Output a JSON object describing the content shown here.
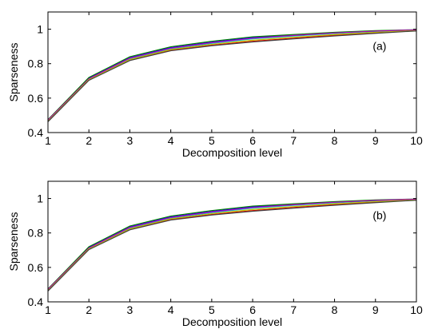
{
  "chart_data": [
    {
      "type": "line",
      "panel_label": "(a)",
      "xlabel": "Decomposition level",
      "ylabel": "Sparseness",
      "xlim": [
        1,
        10
      ],
      "ylim": [
        0.4,
        1.1
      ],
      "x_ticks": [
        "1",
        "2",
        "3",
        "4",
        "5",
        "6",
        "7",
        "8",
        "9",
        "10"
      ],
      "y_ticks": [
        "0.4",
        "0.6",
        "0.8",
        "1"
      ],
      "grid": false,
      "x": [
        1,
        2,
        3,
        4,
        5,
        6,
        7,
        8,
        9,
        10
      ],
      "series": [
        {
          "color": "#0000ff",
          "values": [
            0.47,
            0.715,
            0.835,
            0.893,
            0.925,
            0.952,
            0.966,
            0.979,
            0.99,
            0.996
          ]
        },
        {
          "color": "#008000",
          "values": [
            0.475,
            0.72,
            0.84,
            0.898,
            0.93,
            0.956,
            0.969,
            0.982,
            0.992,
            0.997
          ]
        },
        {
          "color": "#ff0000",
          "values": [
            0.465,
            0.705,
            0.82,
            0.878,
            0.907,
            0.93,
            0.948,
            0.965,
            0.979,
            0.991
          ]
        },
        {
          "color": "#00bfbf",
          "values": [
            0.468,
            0.71,
            0.828,
            0.886,
            0.918,
            0.944,
            0.96,
            0.975,
            0.987,
            0.995
          ]
        },
        {
          "color": "#bf00bf",
          "values": [
            0.472,
            0.712,
            0.832,
            0.89,
            0.922,
            0.948,
            0.964,
            0.978,
            0.989,
            0.996
          ]
        },
        {
          "color": "#bfbf00",
          "values": [
            0.466,
            0.707,
            0.824,
            0.882,
            0.912,
            0.936,
            0.953,
            0.969,
            0.982,
            0.992
          ]
        },
        {
          "color": "#404040",
          "values": [
            0.463,
            0.703,
            0.818,
            0.875,
            0.904,
            0.926,
            0.944,
            0.961,
            0.976,
            0.99
          ]
        }
      ]
    },
    {
      "type": "line",
      "panel_label": "(b)",
      "xlabel": "Decomposition level",
      "ylabel": "Sparseness",
      "xlim": [
        1,
        10
      ],
      "ylim": [
        0.4,
        1.1
      ],
      "x_ticks": [
        "1",
        "2",
        "3",
        "4",
        "5",
        "6",
        "7",
        "8",
        "9",
        "10"
      ],
      "y_ticks": [
        "0.4",
        "0.6",
        "0.8",
        "1"
      ],
      "grid": false,
      "x": [
        1,
        2,
        3,
        4,
        5,
        6,
        7,
        8,
        9,
        10
      ],
      "series": [
        {
          "color": "#0000ff",
          "values": [
            0.47,
            0.715,
            0.835,
            0.893,
            0.925,
            0.952,
            0.966,
            0.979,
            0.99,
            0.996
          ]
        },
        {
          "color": "#008000",
          "values": [
            0.475,
            0.72,
            0.84,
            0.898,
            0.93,
            0.956,
            0.969,
            0.982,
            0.992,
            0.997
          ]
        },
        {
          "color": "#ff0000",
          "values": [
            0.465,
            0.705,
            0.82,
            0.878,
            0.907,
            0.93,
            0.948,
            0.965,
            0.979,
            0.991
          ]
        },
        {
          "color": "#00bfbf",
          "values": [
            0.468,
            0.71,
            0.828,
            0.886,
            0.918,
            0.944,
            0.96,
            0.975,
            0.987,
            0.995
          ]
        },
        {
          "color": "#bf00bf",
          "values": [
            0.472,
            0.712,
            0.832,
            0.89,
            0.922,
            0.948,
            0.964,
            0.978,
            0.989,
            0.996
          ]
        },
        {
          "color": "#bfbf00",
          "values": [
            0.466,
            0.707,
            0.824,
            0.882,
            0.912,
            0.936,
            0.953,
            0.969,
            0.982,
            0.992
          ]
        },
        {
          "color": "#404040",
          "values": [
            0.463,
            0.703,
            0.818,
            0.875,
            0.904,
            0.926,
            0.944,
            0.961,
            0.976,
            0.99
          ]
        }
      ]
    }
  ]
}
